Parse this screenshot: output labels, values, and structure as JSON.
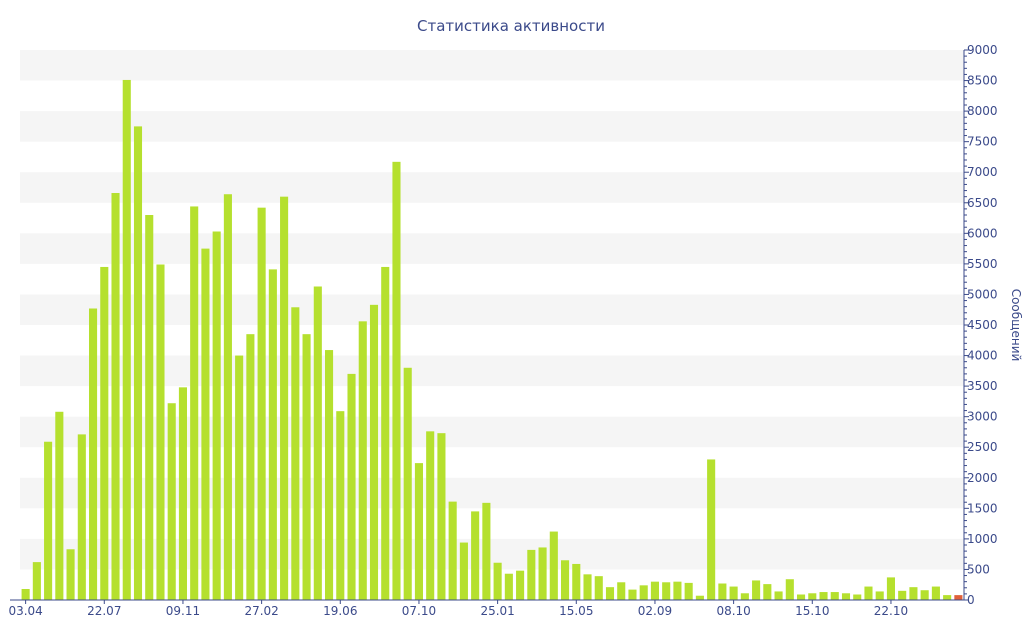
{
  "chart_data": {
    "type": "bar",
    "title": "Статистика активности",
    "ylabel": "Сообщений",
    "xlabel": "",
    "ylim": [
      0,
      9000
    ],
    "y_ticks": [
      0,
      500,
      1000,
      1500,
      2000,
      2500,
      3000,
      3500,
      4000,
      4500,
      5000,
      5500,
      6000,
      6500,
      7000,
      7500,
      8000,
      8500,
      9000
    ],
    "y_axis_side": "right",
    "grid": "alternating horizontal bands",
    "x_tick_labels": [
      {
        "label": "03.04",
        "index": 0
      },
      {
        "label": "22.07",
        "index": 7
      },
      {
        "label": "09.11",
        "index": 14
      },
      {
        "label": "27.02",
        "index": 21
      },
      {
        "label": "19.06",
        "index": 28
      },
      {
        "label": "07.10",
        "index": 35
      },
      {
        "label": "25.01",
        "index": 42
      },
      {
        "label": "15.05",
        "index": 49
      },
      {
        "label": "02.09",
        "index": 56
      },
      {
        "label": "08.10",
        "index": 63
      },
      {
        "label": "15.10",
        "index": 70
      },
      {
        "label": "22.10",
        "index": 77
      }
    ],
    "colors": {
      "bar": "#b5e02e",
      "last_bar": "#e0603a",
      "axis": "#3b4a8a",
      "band": "#f5f5f5"
    },
    "values": [
      180,
      620,
      2590,
      3080,
      830,
      2710,
      4770,
      5450,
      6660,
      8510,
      7750,
      6300,
      5490,
      3220,
      3480,
      6440,
      5750,
      6030,
      6640,
      4000,
      4350,
      6420,
      5410,
      6600,
      4790,
      4350,
      5130,
      4090,
      3090,
      3700,
      4560,
      4830,
      5450,
      7170,
      3800,
      2240,
      2760,
      2730,
      1610,
      940,
      1450,
      1590,
      610,
      430,
      480,
      820,
      860,
      1120,
      650,
      590,
      420,
      390,
      210,
      290,
      170,
      240,
      300,
      290,
      300,
      280,
      70,
      2300,
      270,
      220,
      110,
      320,
      260,
      140,
      340,
      90,
      110,
      130,
      130,
      110,
      90,
      220,
      140,
      370,
      150,
      210,
      160,
      220,
      80,
      80
    ]
  }
}
